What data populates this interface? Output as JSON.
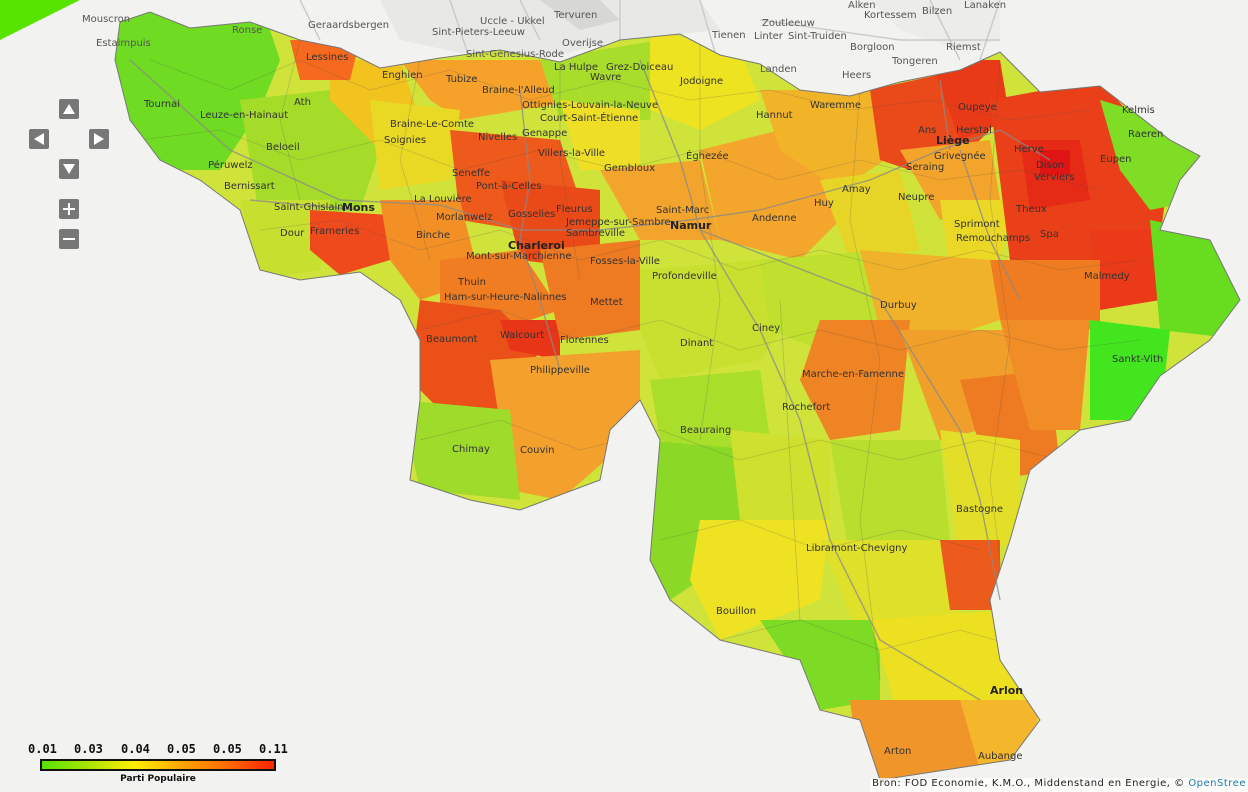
{
  "map": {
    "background_places": [
      "Mouscron",
      "Estaimpuis",
      "Ronse",
      "Geraardsbergen",
      "Uccle - Ukkel",
      "Tervuren",
      "Sint-Pieters-Leeuw",
      "Sint-Genesius-Rode",
      "Overijse",
      "Tienen",
      "Zoutleeuw",
      "Linter",
      "Sint-Truiden",
      "Alken",
      "Kortessem",
      "Bilzen",
      "Lanaken",
      "Borgloon",
      "Riemst",
      "Landen",
      "Heers",
      "Tongeren"
    ],
    "places": [
      "Lessines",
      "Enghien",
      "Tubize",
      "Braine-l'Alleud",
      "La Hulpe",
      "Grez-Doiceau",
      "Wavre",
      "Jodoigne",
      "Ottignies-Louvain-la-Neuve",
      "Court-Saint-Étienne",
      "Genappe",
      "Hannut",
      "Waremme",
      "Ath",
      "Tournai",
      "Leuze-en-Hainaut",
      "Braine-Le-Comte",
      "Soignies",
      "Nivelles",
      "Villers-la-Ville",
      "Beloeil",
      "Péruwelz",
      "Bernissart",
      "Saint-Ghislain",
      "Seneffe",
      "Pont-à-Celles",
      "Gembloux",
      "Éghezée",
      "Herstal",
      "Oupeye",
      "Ans",
      "Liège",
      "Seraing",
      "Grivegnée",
      "Herve",
      "Dison",
      "Verviers",
      "Eupen",
      "Kelmis",
      "Raeren",
      "La Louvière",
      "Morlanwelz",
      "Gosselies",
      "Fleurus",
      "Jemeppe-sur-Sambre",
      "Saint-Marc",
      "Amay",
      "Huy",
      "Neupre",
      "Sprimont",
      "Remouchamps",
      "Theux",
      "Spa",
      "Dour",
      "Frameries",
      "Binche",
      "Sambreville",
      "Andenne",
      "Mont-sur-Marchienne",
      "Fosses-la-Ville",
      "Profondeville",
      "Malmedy",
      "Thuin",
      "Ham-sur-Heure-Nalinnes",
      "Mettet",
      "Durbuy",
      "Beaumont",
      "Walcourt",
      "Florennes",
      "Ciney",
      "Dinant",
      "Sankt-Vith",
      "Philippeville",
      "Marche-en-Famenne",
      "Rochefort",
      "Chimay",
      "Couvin",
      "Beauraing",
      "Bastogne",
      "Libramont-Chevigny",
      "Bouillon",
      "Arlon",
      "Arton",
      "Aubange"
    ],
    "major_places": [
      "Mons",
      "Charleroi",
      "Namur",
      "Liège"
    ]
  },
  "legend": {
    "ticks": [
      "0.01",
      "0.03",
      "0.04",
      "0.05",
      "0.05",
      "0.11"
    ],
    "title": "Parti Populaire",
    "colors": [
      "#57e400",
      "#a8e400",
      "#ffee00",
      "#ffa600",
      "#ff6a00",
      "#ff2400"
    ]
  },
  "controls": {
    "pan_up": "arrow-up-icon",
    "pan_left": "arrow-left-icon",
    "pan_right": "arrow-right-icon",
    "pan_down": "arrow-down-icon",
    "zoom_in": "plus-icon",
    "zoom_out": "minus-icon"
  },
  "attribution": {
    "text": "Bron: FOD Economie, K.M.O., Middenstand en Energie, © ",
    "link": "OpenStree"
  }
}
